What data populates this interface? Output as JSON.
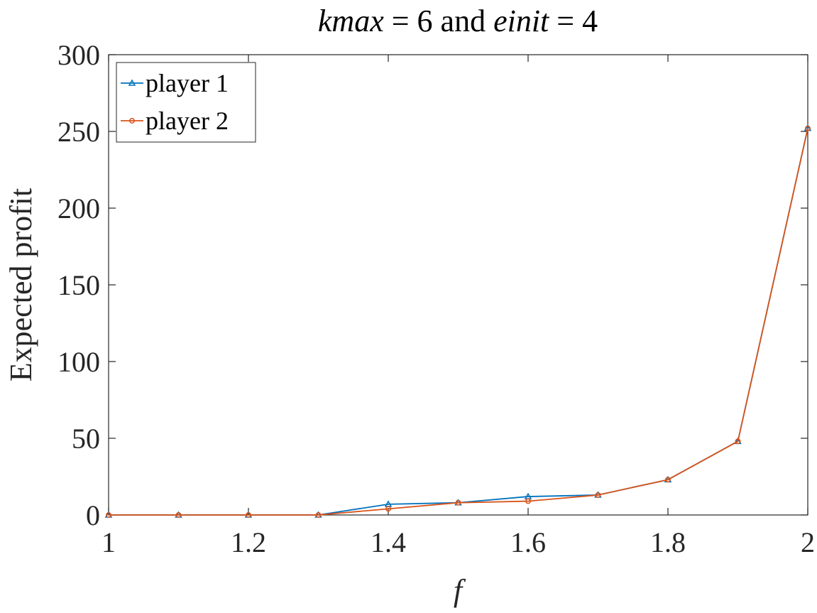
{
  "chart_data": {
    "type": "line",
    "title": {
      "parts": [
        {
          "text": "kmax",
          "italic": true
        },
        {
          "text": " = 6 and ",
          "italic": false
        },
        {
          "text": "einit",
          "italic": true
        },
        {
          "text": " = 4",
          "italic": false
        }
      ]
    },
    "xlabel": "f",
    "ylabel": "Expected profit",
    "xlim": [
      1,
      2
    ],
    "ylim": [
      0,
      300
    ],
    "xticks": [
      1,
      1.2,
      1.4,
      1.6,
      1.8,
      2
    ],
    "xtick_labels": [
      "1",
      "1.2",
      "1.4",
      "1.6",
      "1.8",
      "2"
    ],
    "yticks": [
      0,
      50,
      100,
      150,
      200,
      250,
      300
    ],
    "ytick_labels": [
      "0",
      "50",
      "100",
      "150",
      "200",
      "250",
      "300"
    ],
    "grid": false,
    "legend_position": "top-left",
    "x": [
      1,
      1.1,
      1.2,
      1.3,
      1.4,
      1.5,
      1.6,
      1.7,
      1.8,
      1.9,
      2
    ],
    "series": [
      {
        "name": "player 1",
        "color": "#0072BD",
        "marker": "triangle",
        "values": [
          0,
          0,
          0,
          0,
          7,
          8,
          12,
          13,
          23,
          48,
          252
        ]
      },
      {
        "name": "player 2",
        "color": "#D95319",
        "marker": "circle",
        "values": [
          0,
          0,
          0,
          0,
          4,
          8,
          9,
          13,
          23,
          48,
          252
        ]
      }
    ]
  }
}
